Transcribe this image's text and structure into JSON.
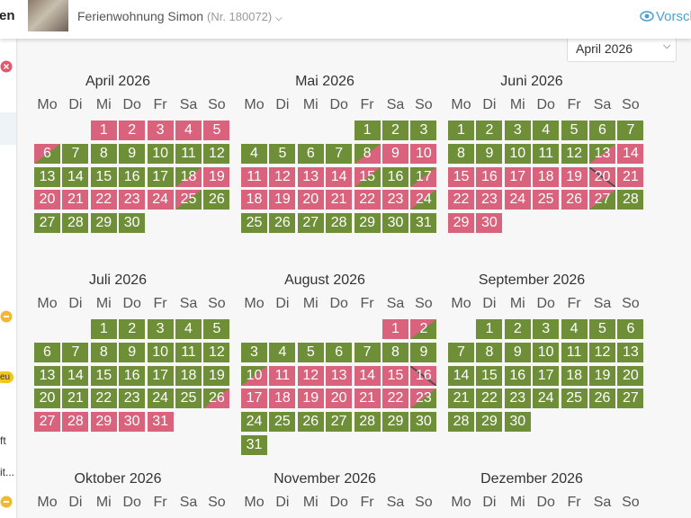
{
  "header": {
    "left_partial": "en",
    "property": "Ferienwohnung Simon",
    "property_id": "(Nr. 180072)",
    "preview": "Vorsch",
    "month_select": "April 2026"
  },
  "sidebar": {
    "tag": "eu",
    "item1": "ft",
    "item2": "it..."
  },
  "weekdays": [
    "Mo",
    "Di",
    "Mi",
    "Do",
    "Fr",
    "Sa",
    "So"
  ],
  "state_colors": {
    "free": "#6e8e38",
    "booked": "#d9627c",
    "line": "#4a4a4a"
  },
  "months": [
    {
      "name": "April 2026",
      "weeks": [
        [
          null,
          null,
          {
            "day": "1",
            "state": "booked"
          },
          {
            "day": "2",
            "state": "booked"
          },
          {
            "day": "3",
            "state": "booked"
          },
          {
            "day": "4",
            "state": "booked"
          },
          {
            "day": "5",
            "state": "booked"
          }
        ],
        [
          {
            "day": "6",
            "state": "out"
          },
          {
            "day": "7",
            "state": "free"
          },
          {
            "day": "8",
            "state": "free"
          },
          {
            "day": "9",
            "state": "free"
          },
          {
            "day": "10",
            "state": "free"
          },
          {
            "day": "11",
            "state": "free"
          },
          {
            "day": "12",
            "state": "free"
          }
        ],
        [
          {
            "day": "13",
            "state": "free"
          },
          {
            "day": "14",
            "state": "free"
          },
          {
            "day": "15",
            "state": "free"
          },
          {
            "day": "16",
            "state": "free"
          },
          {
            "day": "17",
            "state": "free"
          },
          {
            "day": "18",
            "state": "in"
          },
          {
            "day": "19",
            "state": "booked"
          }
        ],
        [
          {
            "day": "20",
            "state": "booked"
          },
          {
            "day": "21",
            "state": "booked"
          },
          {
            "day": "22",
            "state": "booked"
          },
          {
            "day": "23",
            "state": "booked"
          },
          {
            "day": "24",
            "state": "booked"
          },
          {
            "day": "25",
            "state": "out"
          },
          {
            "day": "26",
            "state": "free"
          }
        ],
        [
          {
            "day": "27",
            "state": "free"
          },
          {
            "day": "28",
            "state": "free"
          },
          {
            "day": "29",
            "state": "free"
          },
          {
            "day": "30",
            "state": "free"
          },
          null,
          null,
          null
        ]
      ]
    },
    {
      "name": "Mai 2026",
      "weeks": [
        [
          null,
          null,
          null,
          null,
          {
            "day": "1",
            "state": "free"
          },
          {
            "day": "2",
            "state": "free"
          },
          {
            "day": "3",
            "state": "free"
          }
        ],
        [
          {
            "day": "4",
            "state": "free"
          },
          {
            "day": "5",
            "state": "free"
          },
          {
            "day": "6",
            "state": "free"
          },
          {
            "day": "7",
            "state": "free"
          },
          {
            "day": "8",
            "state": "in"
          },
          {
            "day": "9",
            "state": "booked"
          },
          {
            "day": "10",
            "state": "booked"
          }
        ],
        [
          {
            "day": "11",
            "state": "booked"
          },
          {
            "day": "12",
            "state": "booked"
          },
          {
            "day": "13",
            "state": "booked"
          },
          {
            "day": "14",
            "state": "booked"
          },
          {
            "day": "15",
            "state": "out"
          },
          {
            "day": "16",
            "state": "free"
          },
          {
            "day": "17",
            "state": "in"
          }
        ],
        [
          {
            "day": "18",
            "state": "booked"
          },
          {
            "day": "19",
            "state": "booked"
          },
          {
            "day": "20",
            "state": "booked"
          },
          {
            "day": "21",
            "state": "booked"
          },
          {
            "day": "22",
            "state": "booked"
          },
          {
            "day": "23",
            "state": "booked"
          },
          {
            "day": "24",
            "state": "out"
          }
        ],
        [
          {
            "day": "25",
            "state": "free"
          },
          {
            "day": "26",
            "state": "free"
          },
          {
            "day": "27",
            "state": "free"
          },
          {
            "day": "28",
            "state": "free"
          },
          {
            "day": "29",
            "state": "free"
          },
          {
            "day": "30",
            "state": "free"
          },
          {
            "day": "31",
            "state": "free"
          }
        ]
      ]
    },
    {
      "name": "Juni 2026",
      "weeks": [
        [
          {
            "day": "1",
            "state": "free"
          },
          {
            "day": "2",
            "state": "free"
          },
          {
            "day": "3",
            "state": "free"
          },
          {
            "day": "4",
            "state": "free"
          },
          {
            "day": "5",
            "state": "free"
          },
          {
            "day": "6",
            "state": "free"
          },
          {
            "day": "7",
            "state": "free"
          }
        ],
        [
          {
            "day": "8",
            "state": "free"
          },
          {
            "day": "9",
            "state": "free"
          },
          {
            "day": "10",
            "state": "free"
          },
          {
            "day": "11",
            "state": "free"
          },
          {
            "day": "12",
            "state": "free"
          },
          {
            "day": "13",
            "state": "in"
          },
          {
            "day": "14",
            "state": "booked"
          }
        ],
        [
          {
            "day": "15",
            "state": "booked"
          },
          {
            "day": "16",
            "state": "booked"
          },
          {
            "day": "17",
            "state": "booked"
          },
          {
            "day": "18",
            "state": "booked"
          },
          {
            "day": "19",
            "state": "booked"
          },
          {
            "day": "20",
            "state": "change"
          },
          {
            "day": "21",
            "state": "booked"
          }
        ],
        [
          {
            "day": "22",
            "state": "booked"
          },
          {
            "day": "23",
            "state": "booked"
          },
          {
            "day": "24",
            "state": "booked"
          },
          {
            "day": "25",
            "state": "booked"
          },
          {
            "day": "26",
            "state": "booked"
          },
          {
            "day": "27",
            "state": "out"
          },
          {
            "day": "28",
            "state": "free"
          }
        ],
        [
          {
            "day": "29",
            "state": "booked"
          },
          {
            "day": "30",
            "state": "booked"
          },
          null,
          null,
          null,
          null,
          null
        ]
      ]
    },
    {
      "name": "Juli 2026",
      "weeks": [
        [
          null,
          null,
          {
            "day": "1",
            "state": "free"
          },
          {
            "day": "2",
            "state": "free"
          },
          {
            "day": "3",
            "state": "free"
          },
          {
            "day": "4",
            "state": "free"
          },
          {
            "day": "5",
            "state": "free"
          }
        ],
        [
          {
            "day": "6",
            "state": "free"
          },
          {
            "day": "7",
            "state": "free"
          },
          {
            "day": "8",
            "state": "free"
          },
          {
            "day": "9",
            "state": "free"
          },
          {
            "day": "10",
            "state": "free"
          },
          {
            "day": "11",
            "state": "free"
          },
          {
            "day": "12",
            "state": "free"
          }
        ],
        [
          {
            "day": "13",
            "state": "free"
          },
          {
            "day": "14",
            "state": "free"
          },
          {
            "day": "15",
            "state": "free"
          },
          {
            "day": "16",
            "state": "free"
          },
          {
            "day": "17",
            "state": "free"
          },
          {
            "day": "18",
            "state": "free"
          },
          {
            "day": "19",
            "state": "free"
          }
        ],
        [
          {
            "day": "20",
            "state": "free"
          },
          {
            "day": "21",
            "state": "free"
          },
          {
            "day": "22",
            "state": "free"
          },
          {
            "day": "23",
            "state": "free"
          },
          {
            "day": "24",
            "state": "free"
          },
          {
            "day": "25",
            "state": "free"
          },
          {
            "day": "26",
            "state": "in"
          }
        ],
        [
          {
            "day": "27",
            "state": "booked"
          },
          {
            "day": "28",
            "state": "booked"
          },
          {
            "day": "29",
            "state": "booked"
          },
          {
            "day": "30",
            "state": "booked"
          },
          {
            "day": "31",
            "state": "booked"
          },
          null,
          null
        ]
      ]
    },
    {
      "name": "August 2026",
      "weeks": [
        [
          null,
          null,
          null,
          null,
          null,
          {
            "day": "1",
            "state": "booked"
          },
          {
            "day": "2",
            "state": "out"
          }
        ],
        [
          {
            "day": "3",
            "state": "free"
          },
          {
            "day": "4",
            "state": "free"
          },
          {
            "day": "5",
            "state": "free"
          },
          {
            "day": "6",
            "state": "free"
          },
          {
            "day": "7",
            "state": "free"
          },
          {
            "day": "8",
            "state": "free"
          },
          {
            "day": "9",
            "state": "free"
          }
        ],
        [
          {
            "day": "10",
            "state": "in"
          },
          {
            "day": "11",
            "state": "booked"
          },
          {
            "day": "12",
            "state": "booked"
          },
          {
            "day": "13",
            "state": "booked"
          },
          {
            "day": "14",
            "state": "booked"
          },
          {
            "day": "15",
            "state": "booked"
          },
          {
            "day": "16",
            "state": "change"
          }
        ],
        [
          {
            "day": "17",
            "state": "booked"
          },
          {
            "day": "18",
            "state": "booked"
          },
          {
            "day": "19",
            "state": "booked"
          },
          {
            "day": "20",
            "state": "booked"
          },
          {
            "day": "21",
            "state": "booked"
          },
          {
            "day": "22",
            "state": "booked"
          },
          {
            "day": "23",
            "state": "out"
          }
        ],
        [
          {
            "day": "24",
            "state": "free"
          },
          {
            "day": "25",
            "state": "free"
          },
          {
            "day": "26",
            "state": "free"
          },
          {
            "day": "27",
            "state": "free"
          },
          {
            "day": "28",
            "state": "free"
          },
          {
            "day": "29",
            "state": "free"
          },
          {
            "day": "30",
            "state": "free"
          }
        ],
        [
          {
            "day": "31",
            "state": "free"
          },
          null,
          null,
          null,
          null,
          null,
          null
        ]
      ]
    },
    {
      "name": "September 2026",
      "weeks": [
        [
          null,
          {
            "day": "1",
            "state": "free"
          },
          {
            "day": "2",
            "state": "free"
          },
          {
            "day": "3",
            "state": "free"
          },
          {
            "day": "4",
            "state": "free"
          },
          {
            "day": "5",
            "state": "free"
          },
          {
            "day": "6",
            "state": "free"
          }
        ],
        [
          {
            "day": "7",
            "state": "free"
          },
          {
            "day": "8",
            "state": "free"
          },
          {
            "day": "9",
            "state": "free"
          },
          {
            "day": "10",
            "state": "free"
          },
          {
            "day": "11",
            "state": "free"
          },
          {
            "day": "12",
            "state": "free"
          },
          {
            "day": "13",
            "state": "free"
          }
        ],
        [
          {
            "day": "14",
            "state": "free"
          },
          {
            "day": "15",
            "state": "free"
          },
          {
            "day": "16",
            "state": "free"
          },
          {
            "day": "17",
            "state": "free"
          },
          {
            "day": "18",
            "state": "free"
          },
          {
            "day": "19",
            "state": "free"
          },
          {
            "day": "20",
            "state": "free"
          }
        ],
        [
          {
            "day": "21",
            "state": "free"
          },
          {
            "day": "22",
            "state": "free"
          },
          {
            "day": "23",
            "state": "free"
          },
          {
            "day": "24",
            "state": "free"
          },
          {
            "day": "25",
            "state": "free"
          },
          {
            "day": "26",
            "state": "free"
          },
          {
            "day": "27",
            "state": "free"
          }
        ],
        [
          {
            "day": "28",
            "state": "free"
          },
          {
            "day": "29",
            "state": "free"
          },
          {
            "day": "30",
            "state": "free"
          },
          null,
          null,
          null,
          null
        ]
      ]
    },
    {
      "name": "Oktober 2026",
      "weeks": []
    },
    {
      "name": "November 2026",
      "weeks": []
    },
    {
      "name": "Dezember 2026",
      "weeks": []
    }
  ]
}
